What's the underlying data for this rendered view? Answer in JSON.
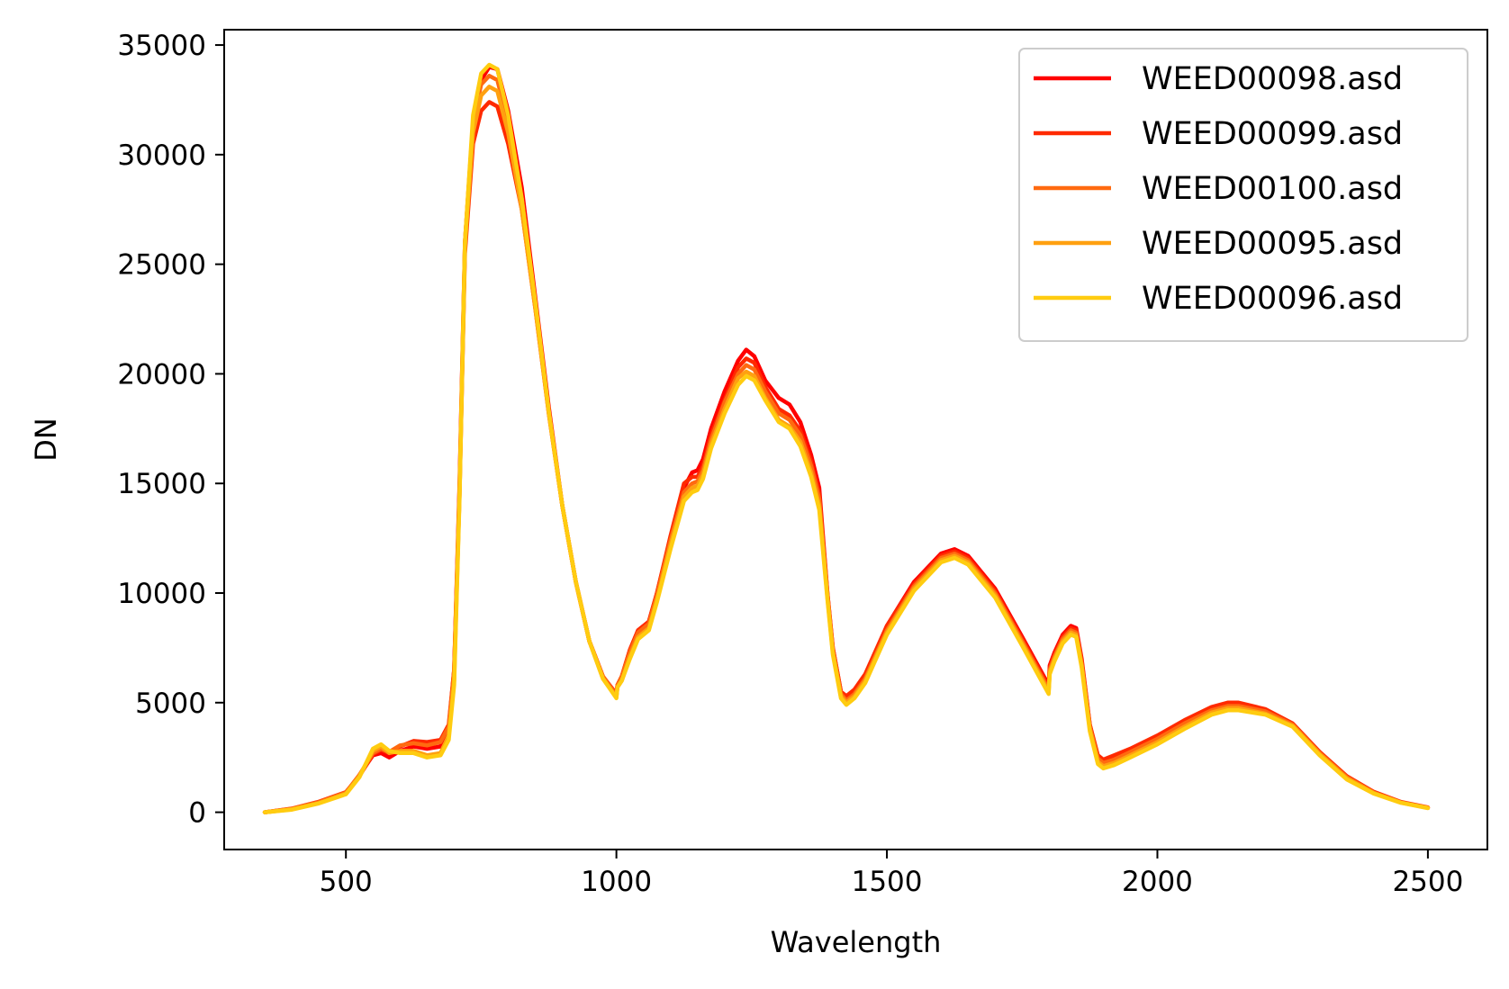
{
  "chart_data": {
    "type": "line",
    "title": "",
    "xlabel": "Wavelength",
    "ylabel": "DN",
    "xlim": [
      275,
      2610
    ],
    "ylim": [
      -1700,
      35700
    ],
    "x_ticks": [
      500,
      1000,
      1500,
      2000,
      2500
    ],
    "x_tick_labels": [
      "500",
      "1000",
      "1500",
      "2000",
      "2500"
    ],
    "y_ticks": [
      0,
      5000,
      10000,
      15000,
      20000,
      25000,
      30000,
      35000
    ],
    "y_tick_labels": [
      "0",
      "5000",
      "10000",
      "15000",
      "20000",
      "25000",
      "30000",
      "35000"
    ],
    "grid": false,
    "legend_position": "top-right",
    "x": [
      350,
      400,
      450,
      500,
      525,
      550,
      565,
      580,
      600,
      625,
      650,
      675,
      690,
      700,
      710,
      720,
      735,
      750,
      765,
      780,
      800,
      825,
      850,
      875,
      900,
      925,
      950,
      975,
      1000,
      1002,
      1010,
      1025,
      1040,
      1060,
      1075,
      1100,
      1125,
      1140,
      1150,
      1160,
      1175,
      1200,
      1225,
      1240,
      1255,
      1275,
      1300,
      1320,
      1340,
      1360,
      1375,
      1390,
      1400,
      1415,
      1425,
      1440,
      1460,
      1480,
      1500,
      1550,
      1600,
      1625,
      1650,
      1700,
      1750,
      1799,
      1801,
      1810,
      1825,
      1840,
      1850,
      1860,
      1875,
      1890,
      1900,
      1920,
      1950,
      2000,
      2050,
      2100,
      2130,
      2150,
      2200,
      2250,
      2300,
      2350,
      2400,
      2450,
      2500
    ],
    "series": [
      {
        "name": "WEED00098.asd",
        "color": "#ff0000",
        "values": [
          0,
          150,
          450,
          900,
          1700,
          2600,
          2700,
          2500,
          2800,
          3000,
          2900,
          3000,
          3800,
          6500,
          15000,
          26000,
          31500,
          33400,
          34000,
          33900,
          32000,
          28500,
          23500,
          18500,
          14000,
          10500,
          7800,
          6200,
          5400,
          5800,
          6200,
          7400,
          8300,
          8700,
          10000,
          12500,
          14800,
          15500,
          15600,
          16100,
          17500,
          19200,
          20600,
          21100,
          20800,
          19700,
          18900,
          18600,
          17800,
          16300,
          14800,
          10000,
          7500,
          5500,
          5200,
          5500,
          6200,
          7300,
          8500,
          10500,
          11800,
          12000,
          11700,
          10200,
          8000,
          5800,
          6700,
          7300,
          8100,
          8500,
          8400,
          7000,
          4000,
          2500,
          2300,
          2400,
          2700,
          3300,
          4000,
          4600,
          4800,
          4800,
          4600,
          4000,
          2700,
          1600,
          900,
          450,
          200
        ]
      },
      {
        "name": "WEED00099.asd",
        "color": "#ff2a00",
        "values": [
          0,
          170,
          480,
          920,
          1650,
          2650,
          2850,
          2700,
          3000,
          3250,
          3200,
          3300,
          4000,
          6500,
          14500,
          25500,
          30500,
          32000,
          32400,
          32200,
          30500,
          27500,
          23000,
          18200,
          14000,
          10500,
          7800,
          6200,
          5300,
          5800,
          6200,
          7400,
          8300,
          8700,
          10000,
          12600,
          15000,
          15300,
          15300,
          15800,
          17200,
          18800,
          20300,
          20700,
          20500,
          19400,
          18400,
          18100,
          17400,
          16000,
          14500,
          10000,
          7500,
          5500,
          5300,
          5600,
          6300,
          7400,
          8500,
          10400,
          11700,
          11900,
          11600,
          10100,
          7900,
          5700,
          6600,
          7200,
          8000,
          8400,
          8300,
          6900,
          4000,
          2600,
          2400,
          2600,
          2900,
          3500,
          4200,
          4800,
          5000,
          5000,
          4700,
          4050,
          2750,
          1650,
          930,
          470,
          220
        ]
      },
      {
        "name": "WEED00100.asd",
        "color": "#ff6a10",
        "values": [
          0,
          160,
          460,
          900,
          1700,
          2700,
          2900,
          2750,
          3050,
          3150,
          3050,
          3200,
          3900,
          6400,
          14800,
          26000,
          31500,
          33200,
          33600,
          33400,
          31500,
          28000,
          23200,
          18300,
          14000,
          10500,
          7800,
          6200,
          5350,
          5800,
          6200,
          7300,
          8200,
          8600,
          9900,
          12400,
          14600,
          15000,
          15100,
          15600,
          17000,
          18700,
          20000,
          20400,
          20200,
          19200,
          18200,
          17900,
          17200,
          15800,
          14300,
          9900,
          7400,
          5400,
          5100,
          5400,
          6100,
          7200,
          8300,
          10300,
          11600,
          11800,
          11500,
          10000,
          7800,
          5600,
          6500,
          7100,
          7900,
          8300,
          8200,
          6800,
          3900,
          2450,
          2250,
          2400,
          2750,
          3350,
          4050,
          4650,
          4850,
          4850,
          4600,
          4000,
          2700,
          1600,
          900,
          450,
          200
        ]
      },
      {
        "name": "WEED00095.asd",
        "color": "#ffa010",
        "values": [
          0,
          130,
          420,
          850,
          1650,
          2800,
          3000,
          2700,
          2800,
          2800,
          2600,
          2700,
          3500,
          6000,
          14500,
          25800,
          31000,
          32700,
          33100,
          32900,
          31000,
          27500,
          23000,
          18200,
          14000,
          10500,
          7800,
          6100,
          5250,
          5700,
          6000,
          7100,
          8000,
          8400,
          9700,
          12200,
          14400,
          14800,
          14900,
          15400,
          16800,
          18400,
          19800,
          20100,
          19900,
          18900,
          17900,
          17600,
          16900,
          15500,
          14000,
          9800,
          7300,
          5300,
          5000,
          5300,
          6000,
          7100,
          8200,
          10200,
          11500,
          11700,
          11400,
          9900,
          7700,
          5500,
          6400,
          7000,
          7800,
          8200,
          8100,
          6700,
          3800,
          2300,
          2100,
          2250,
          2600,
          3200,
          3900,
          4550,
          4750,
          4750,
          4500,
          3950,
          2650,
          1550,
          880,
          440,
          200
        ]
      },
      {
        "name": "WEED00096.asd",
        "color": "#ffcc10",
        "values": [
          0,
          120,
          400,
          820,
          1600,
          2900,
          3100,
          2800,
          2700,
          2700,
          2500,
          2600,
          3300,
          5800,
          14300,
          26000,
          31800,
          33700,
          34100,
          33900,
          31800,
          28000,
          23300,
          18300,
          14000,
          10500,
          7800,
          6100,
          5200,
          5700,
          6000,
          7000,
          7900,
          8300,
          9600,
          12000,
          14200,
          14600,
          14700,
          15200,
          16600,
          18200,
          19500,
          19900,
          19700,
          18800,
          17800,
          17500,
          16700,
          15300,
          13800,
          9700,
          7200,
          5200,
          4900,
          5200,
          5900,
          7000,
          8100,
          10100,
          11400,
          11600,
          11300,
          9800,
          7600,
          5400,
          6300,
          6900,
          7700,
          8100,
          8000,
          6600,
          3700,
          2200,
          2000,
          2150,
          2500,
          3100,
          3800,
          4450,
          4650,
          4650,
          4450,
          3900,
          2600,
          1500,
          850,
          430,
          190
        ]
      }
    ]
  }
}
